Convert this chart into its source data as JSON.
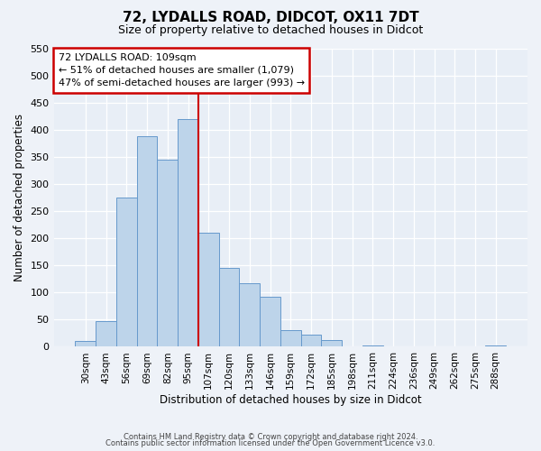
{
  "title": "72, LYDALLS ROAD, DIDCOT, OX11 7DT",
  "subtitle": "Size of property relative to detached houses in Didcot",
  "xlabel": "Distribution of detached houses by size in Didcot",
  "ylabel": "Number of detached properties",
  "bar_labels": [
    "30sqm",
    "43sqm",
    "56sqm",
    "69sqm",
    "82sqm",
    "95sqm",
    "107sqm",
    "120sqm",
    "133sqm",
    "146sqm",
    "159sqm",
    "172sqm",
    "185sqm",
    "198sqm",
    "211sqm",
    "224sqm",
    "236sqm",
    "249sqm",
    "262sqm",
    "275sqm",
    "288sqm"
  ],
  "bar_values": [
    11,
    48,
    275,
    388,
    345,
    420,
    210,
    145,
    118,
    93,
    31,
    23,
    12,
    0,
    2,
    0,
    0,
    0,
    0,
    0,
    2
  ],
  "bar_color": "#bdd4ea",
  "bar_edge_color": "#6699cc",
  "annotation_title": "72 LYDALLS ROAD: 109sqm",
  "annotation_line1": "← 51% of detached houses are smaller (1,079)",
  "annotation_line2": "47% of semi-detached houses are larger (993) →",
  "annotation_box_color": "#ffffff",
  "annotation_box_edge": "#cc0000",
  "vline_color": "#cc0000",
  "vline_pos": 5.5,
  "ylim": [
    0,
    550
  ],
  "yticks": [
    0,
    50,
    100,
    150,
    200,
    250,
    300,
    350,
    400,
    450,
    500,
    550
  ],
  "footer1": "Contains HM Land Registry data © Crown copyright and database right 2024.",
  "footer2": "Contains public sector information licensed under the Open Government Licence v3.0.",
  "bg_color": "#eef2f8",
  "plot_bg_color": "#e8eef6",
  "grid_color": "#ffffff"
}
